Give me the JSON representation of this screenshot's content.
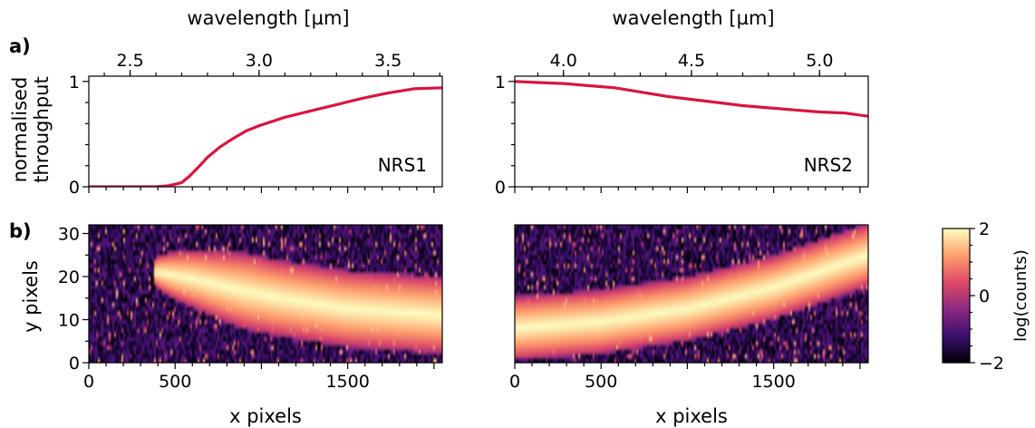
{
  "labels": {
    "panel_a": "a)",
    "panel_b": "b)",
    "wavelength_axis": "wavelength [µm]",
    "throughput_line1": "normalised",
    "throughput_line2": "throughput",
    "ypix_axis": "y pixels",
    "xpix_axis": "x pixels",
    "colorbar_label": "log(counts)"
  },
  "colors": {
    "throughput_line": "#d6163f",
    "colormap": [
      "#000004",
      "#3b0f70",
      "#8c2981",
      "#de4968",
      "#fe9f6d",
      "#fcfdbf"
    ]
  },
  "chart_data": [
    {
      "type": "line",
      "name": "NRS1",
      "label": "NRS1",
      "panel": "a",
      "xlabel": "",
      "ylabel": "normalised throughput",
      "x_label_top": "wavelength [µm]",
      "wavelength_ticks": [
        "2.5",
        "3.0",
        "3.5"
      ],
      "wavelength_tick_values": [
        2.5,
        3.0,
        3.5
      ],
      "wavelength_range": [
        2.34,
        3.71
      ],
      "ylim": [
        0,
        1.05
      ],
      "yticks": [
        "0",
        "1"
      ],
      "x": [
        2.34,
        2.5,
        2.6,
        2.65,
        2.7,
        2.73,
        2.77,
        2.8,
        2.85,
        2.9,
        2.95,
        3.0,
        3.1,
        3.2,
        3.3,
        3.4,
        3.5,
        3.6,
        3.71
      ],
      "values": [
        0.0,
        0.0,
        0.0,
        0.01,
        0.04,
        0.1,
        0.2,
        0.28,
        0.38,
        0.46,
        0.53,
        0.58,
        0.66,
        0.72,
        0.78,
        0.84,
        0.89,
        0.93,
        0.94
      ]
    },
    {
      "type": "line",
      "name": "NRS2",
      "label": "NRS2",
      "panel": "a",
      "xlabel": "",
      "ylabel": "",
      "x_label_top": "wavelength [µm]",
      "wavelength_ticks": [
        "4.0",
        "4.5",
        "5.0"
      ],
      "wavelength_tick_values": [
        4.0,
        4.5,
        5.0
      ],
      "wavelength_range": [
        3.81,
        5.19
      ],
      "ylim": [
        0,
        1.05
      ],
      "yticks": [
        "0",
        "1"
      ],
      "x": [
        3.81,
        3.9,
        4.0,
        4.1,
        4.2,
        4.3,
        4.4,
        4.5,
        4.6,
        4.7,
        4.8,
        4.9,
        5.0,
        5.1,
        5.19
      ],
      "values": [
        1.0,
        0.99,
        0.98,
        0.96,
        0.94,
        0.9,
        0.86,
        0.83,
        0.8,
        0.77,
        0.75,
        0.73,
        0.71,
        0.7,
        0.67
      ]
    },
    {
      "type": "heatmap",
      "name": "NRS1 detector",
      "panel": "b",
      "xlabel": "x pixels",
      "ylabel": "y pixels",
      "xticks": [
        "0",
        "500",
        "1500"
      ],
      "xtick_values": [
        0,
        500,
        1500
      ],
      "xlim": [
        0,
        2048
      ],
      "yticks": [
        "0",
        "10",
        "20",
        "30"
      ],
      "ylim": [
        0,
        32
      ],
      "trace_center_y": [
        {
          "x": 400,
          "y": 21
        },
        {
          "x": 600,
          "y": 19.5
        },
        {
          "x": 800,
          "y": 17.5
        },
        {
          "x": 1100,
          "y": 15
        },
        {
          "x": 1500,
          "y": 12.5
        },
        {
          "x": 2048,
          "y": 11
        }
      ],
      "trace_start_x": 380,
      "trace_width_at_start": 2,
      "trace_width_at_end": 15,
      "trace_peak_log_counts": 2
    },
    {
      "type": "heatmap",
      "name": "NRS2 detector",
      "panel": "b",
      "xlabel": "x pixels",
      "ylabel": "",
      "xticks": [
        "0",
        "500",
        "1500"
      ],
      "xtick_values": [
        0,
        500,
        1500
      ],
      "xlim": [
        0,
        2048
      ],
      "ylim": [
        0,
        32
      ],
      "trace_center_y": [
        {
          "x": 0,
          "y": 8
        },
        {
          "x": 500,
          "y": 9.5
        },
        {
          "x": 1000,
          "y": 12.5
        },
        {
          "x": 1500,
          "y": 17.5
        },
        {
          "x": 2048,
          "y": 25
        }
      ],
      "trace_width": 12,
      "trace_peak_log_counts": 2
    },
    {
      "type": "colorbar",
      "name": "log(counts)",
      "label": "log(counts)",
      "ticks": [
        "−2",
        "0",
        "2"
      ],
      "tick_values": [
        -2,
        0,
        2
      ],
      "range": [
        -2,
        2
      ]
    }
  ]
}
